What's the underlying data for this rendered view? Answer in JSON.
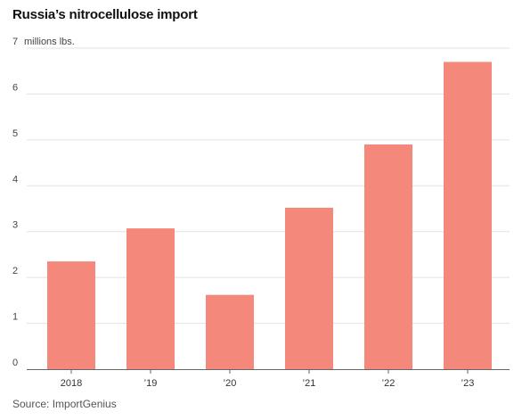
{
  "chart_data": {
    "type": "bar",
    "title": "Russia’s nitrocellulose import",
    "unit_label": "millions lbs.",
    "categories": [
      "2018",
      "’19",
      "’20",
      "’21",
      "’22",
      "’23"
    ],
    "values": [
      2.35,
      3.07,
      1.62,
      3.52,
      4.9,
      6.7
    ],
    "ylim": [
      0,
      7
    ],
    "yticks": [
      0,
      1,
      2,
      3,
      4,
      5,
      6,
      7
    ],
    "bar_color": "#f4887a",
    "grid": true,
    "source": "Source: ImportGenius"
  }
}
